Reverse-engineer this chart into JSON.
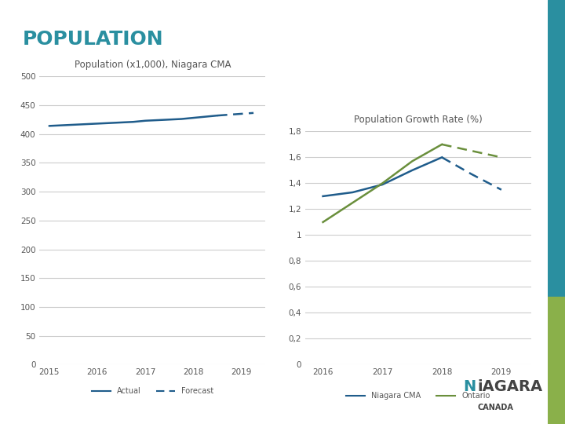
{
  "title": "POPULATION",
  "bg_color": "#ffffff",
  "left_chart": {
    "title": "Population (x1,000), Niagara CMA",
    "actual_years": [
      2015,
      2015.25,
      2015.5,
      2015.75,
      2016,
      2016.25,
      2016.5,
      2016.75,
      2017,
      2017.25,
      2017.5,
      2017.75,
      2018,
      2018.25,
      2018.5
    ],
    "actual_values": [
      414,
      415,
      416,
      417,
      418,
      419,
      420,
      421,
      423,
      424,
      425,
      426,
      428,
      430,
      432
    ],
    "forecast_years": [
      2018.5,
      2018.75,
      2019,
      2019.25
    ],
    "forecast_values": [
      432,
      433.5,
      435,
      436.5
    ],
    "ylim": [
      0,
      500
    ],
    "yticks": [
      0,
      50,
      100,
      150,
      200,
      250,
      300,
      350,
      400,
      450,
      500
    ],
    "xlim": [
      2014.8,
      2019.5
    ],
    "xticks": [
      2015,
      2016,
      2017,
      2018,
      2019
    ],
    "line_color": "#1f5c8b",
    "legend_actual": "Actual",
    "legend_forecast": "Forecast"
  },
  "right_chart": {
    "title": "Population Growth Rate (%)",
    "niagara_actual_years": [
      2016,
      2016.5,
      2017,
      2017.5,
      2018
    ],
    "niagara_actual_values": [
      1.3,
      1.33,
      1.39,
      1.5,
      1.6
    ],
    "niagara_forecast_years": [
      2018,
      2018.5,
      2019
    ],
    "niagara_forecast_values": [
      1.6,
      1.47,
      1.35
    ],
    "ontario_actual_years": [
      2016,
      2016.5,
      2017,
      2017.5,
      2018
    ],
    "ontario_actual_values": [
      1.1,
      1.25,
      1.4,
      1.57,
      1.7
    ],
    "ontario_forecast_years": [
      2018,
      2018.5,
      2019
    ],
    "ontario_forecast_values": [
      1.7,
      1.65,
      1.6
    ],
    "ylim": [
      0,
      1.8
    ],
    "yticks": [
      0,
      0.2,
      0.4,
      0.6,
      0.8,
      1.0,
      1.2,
      1.4,
      1.6,
      1.8
    ],
    "xlim": [
      2015.7,
      2019.5
    ],
    "xticks": [
      2016,
      2017,
      2018,
      2019
    ],
    "niagara_color": "#1f5c8b",
    "ontario_color": "#6a8f3c",
    "legend_niagara": "Niagara CMA",
    "legend_ontario": "Ontario"
  },
  "sidebar_color": "#2a8fa0",
  "sidebar_green": "#8ab04a",
  "grid_color": "#cccccc",
  "tick_color": "#555555",
  "title_color": "#2a8fa0",
  "subtitle_color": "#555555"
}
